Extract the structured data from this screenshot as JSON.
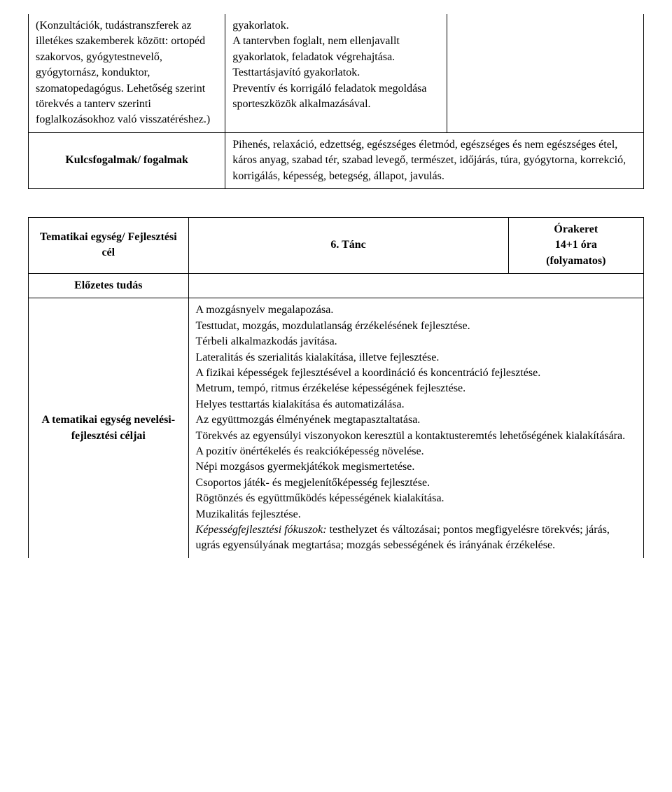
{
  "section1": {
    "col1_text": "(Konzultációk, tudástranszferek az illetékes szakemberek között: ortopéd szakorvos, gyógytestnevelő, gyógytornász, konduktor, szomatopedagógus. Lehetőség szerint törekvés a tanterv szerinti foglalkozásokhoz való visszatéréshez.)",
    "col2_text": "gyakorlatok.\nA tantervben foglalt, nem ellenjavallt gyakorlatok, feladatok végrehajtása.\nTesttartásjavító gyakorlatok.\nPreventív és korrigáló feladatok megoldása sporteszközök alkalmazásával.",
    "row2_label": "Kulcsfogalmak/ fogalmak",
    "row2_text": "Pihenés, relaxáció, edzettség, egészséges életmód, egészséges és nem egészséges étel, káros anyag, szabad tér, szabad levegő, természet, időjárás, túra, gyógytorna, korrekció, korrigálás, képesség, betegség, állapot, javulás."
  },
  "section2": {
    "row1_label": "Tematikai egység/ Fejlesztési cél",
    "row1_title": "6. Tánc",
    "row1_hours_l1": "Órakeret",
    "row1_hours_l2": "14+1 óra",
    "row1_hours_l3": "(folyamatos)",
    "row2_label": "Előzetes tudás",
    "row3_label": "A tematikai egység nevelési-fejlesztési céljai",
    "row3_paragraphs": [
      "A mozgásnyelv megalapozása.",
      "Testtudat, mozgás, mozdulatlanság érzékelésének fejlesztése.",
      "Térbeli alkalmazkodás javítása.",
      "Lateralitás és szerialitás kialakítása, illetve fejlesztése.",
      "A fizikai képességek fejlesztésével a koordináció és koncentráció fejlesztése.",
      "Metrum, tempó, ritmus érzékelése képességének fejlesztése.",
      "Helyes testtartás kialakítása és automatizálása.",
      "Az együttmozgás élményének megtapasztaltatása.",
      "Törekvés az egyensúlyi viszonyokon keresztül a kontaktusteremtés lehetőségének kialakítására.",
      "A pozitív önértékelés és reakcióképesség növelése.",
      "Népi mozgásos gyermekjátékok megismertetése.",
      "Csoportos játék- és megjelenítőképesség fejlesztése.",
      "Rögtönzés és együttműködés képességének kialakítása.",
      "Muzikalitás fejlesztése."
    ],
    "row3_last_prefix": "Képességfejlesztési fókuszok:",
    "row3_last_rest": " testhelyzet és változásai; pontos megfigyelésre törekvés; járás, ugrás egyensúlyának megtartása; mozgás sebességének és irányának érzékelése."
  },
  "layout": {
    "table1_col_widths": [
      "32%",
      "36%",
      "32%"
    ],
    "table2_col_widths": [
      "26%",
      "52%",
      "22%"
    ]
  }
}
